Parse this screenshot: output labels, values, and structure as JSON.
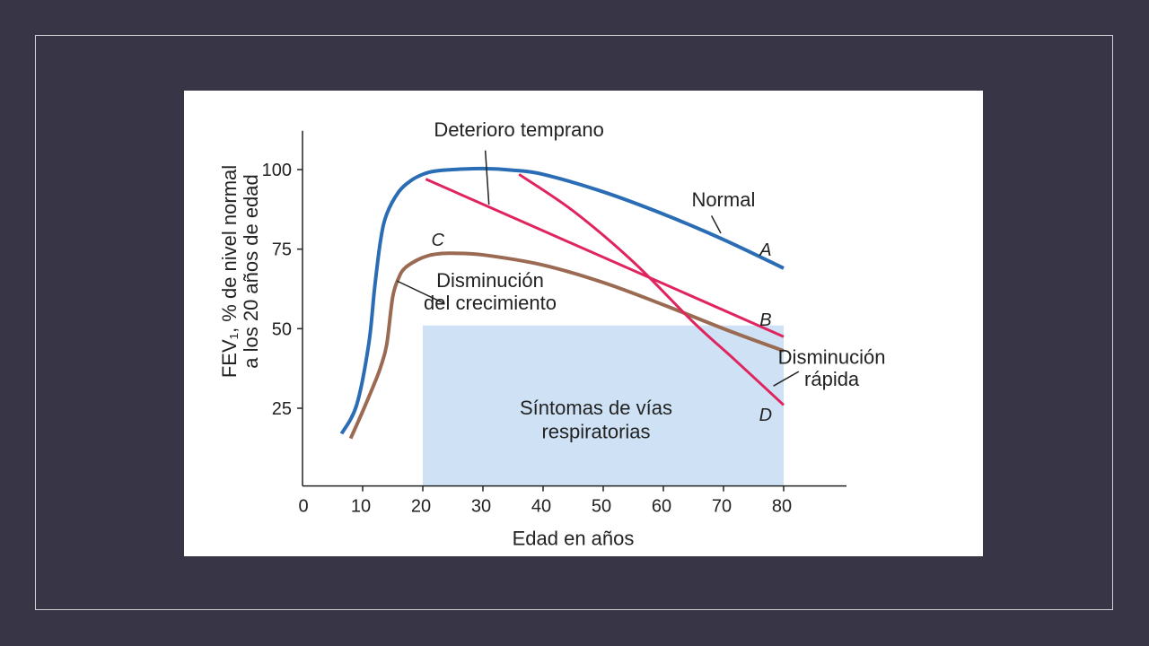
{
  "chart_data": {
    "type": "line",
    "xlabel": "Edad en años",
    "ylabel_line1": "FEV₁, % de nivel normal",
    "ylabel_line2": "a los 20 años de edad",
    "xlim": [
      0,
      90
    ],
    "ylim": [
      0,
      115
    ],
    "x_ticks": [
      0,
      10,
      20,
      30,
      40,
      50,
      60,
      70,
      80
    ],
    "y_ticks": [
      25,
      50,
      75,
      100
    ],
    "shaded_region": {
      "label_line1": "Síntomas de vías",
      "label_line2": "respiratorias",
      "x": [
        20,
        80
      ],
      "y": [
        0,
        51
      ],
      "color": "#cfe2f5"
    },
    "series": [
      {
        "id": "normal",
        "color": "#2a6db5",
        "points": [
          [
            6.5,
            17
          ],
          [
            9,
            26
          ],
          [
            11,
            45
          ],
          [
            12,
            63
          ],
          [
            13,
            78
          ],
          [
            14,
            86
          ],
          [
            16,
            93
          ],
          [
            18,
            96.5
          ],
          [
            20,
            98.5
          ],
          [
            22,
            99.5
          ],
          [
            25,
            100
          ],
          [
            30,
            100.3
          ],
          [
            35,
            99.8
          ],
          [
            40,
            98.5
          ],
          [
            50,
            93
          ],
          [
            60,
            86
          ],
          [
            70,
            78
          ],
          [
            80,
            69
          ]
        ]
      },
      {
        "id": "crecimiento",
        "color": "#9b6a52",
        "points": [
          [
            8,
            15.5
          ],
          [
            10,
            24
          ],
          [
            12,
            33
          ],
          [
            13,
            38
          ],
          [
            14,
            45
          ],
          [
            15,
            60
          ],
          [
            16,
            66
          ],
          [
            17,
            69
          ],
          [
            19,
            71.5
          ],
          [
            21,
            73
          ],
          [
            23,
            73.6
          ],
          [
            25,
            73.7
          ],
          [
            30,
            73.2
          ],
          [
            40,
            70
          ],
          [
            50,
            64.5
          ],
          [
            60,
            57.5
          ],
          [
            70,
            50
          ],
          [
            80,
            43
          ]
        ]
      },
      {
        "id": "deterioro",
        "color": "#e0245e",
        "points": [
          [
            20.5,
            97
          ],
          [
            80,
            47.5
          ]
        ]
      },
      {
        "id": "rapida",
        "color": "#e0245e",
        "points": [
          [
            36,
            98.5
          ],
          [
            45,
            87
          ],
          [
            55,
            71
          ],
          [
            65,
            52
          ],
          [
            72,
            40
          ],
          [
            80,
            26
          ]
        ]
      }
    ],
    "annotations": [
      {
        "text": "Deterioro temprano",
        "x": 33,
        "y": 111,
        "line_to": [
          31,
          89
        ]
      },
      {
        "text": "Normal",
        "x": 67,
        "y": 89,
        "line_to": [
          70,
          80
        ]
      },
      {
        "text": "C",
        "x": 22.5,
        "y": 76
      },
      {
        "text": "A",
        "x": 77,
        "y": 73
      },
      {
        "text": "B",
        "x": 77,
        "y": 51
      },
      {
        "text": "D",
        "x": 77,
        "y": 21
      },
      {
        "text_line1": "Disminución",
        "text_line2": "del crecimiento",
        "x": 30,
        "y": 63,
        "line_to": [
          16,
          65
        ]
      },
      {
        "text_line1": "Disminución",
        "text_line2": "rápida",
        "x": 88,
        "y": 39,
        "line_to": [
          78,
          32
        ]
      }
    ]
  }
}
